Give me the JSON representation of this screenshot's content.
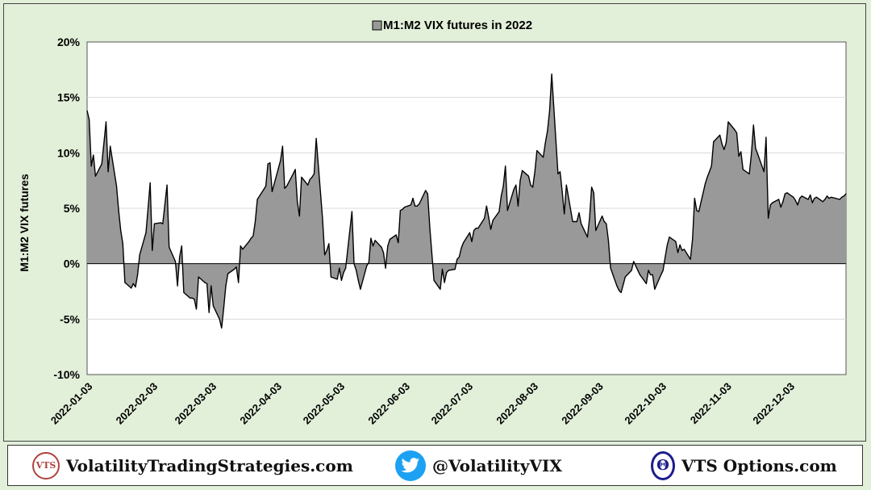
{
  "chart_data": {
    "type": "area",
    "title": "M1:M2 VIX futures in 2022",
    "legend_label": "M1:M2 VIX futures in 2022",
    "legend_position": "top-center",
    "ylabel": "M1:M2 VIX futures",
    "xlabel": "",
    "ylim": [
      -10,
      20
    ],
    "ytick_values": [
      -10,
      -5,
      0,
      5,
      10,
      15,
      20
    ],
    "ytick_labels": [
      "-10%",
      "-5%",
      "0%",
      "5%",
      "10%",
      "15%",
      "20%"
    ],
    "xtick_labels": [
      "2022-01-03",
      "2022-02-03",
      "2022-03-03",
      "2022-04-03",
      "2022-05-03",
      "2022-06-03",
      "2022-07-03",
      "2022-08-03",
      "2022-09-03",
      "2022-10-03",
      "2022-11-03",
      "2022-12-03"
    ],
    "xlim": [
      "2022-01-03",
      "2022-12-30"
    ],
    "grid": "horizontal",
    "fill_color": "#999999",
    "line_color": "#000000",
    "series": [
      {
        "name": "M1:M2 VIX futures in 2022",
        "points": [
          [
            "2022-01-03",
            13.8
          ],
          [
            "2022-01-04",
            13.0
          ],
          [
            "2022-01-05",
            8.8
          ],
          [
            "2022-01-06",
            9.8
          ],
          [
            "2022-01-07",
            7.9
          ],
          [
            "2022-01-10",
            9.0
          ],
          [
            "2022-01-11",
            10.9
          ],
          [
            "2022-01-12",
            12.8
          ],
          [
            "2022-01-13",
            8.3
          ],
          [
            "2022-01-14",
            10.6
          ],
          [
            "2022-01-17",
            7.0
          ],
          [
            "2022-01-18",
            4.8
          ],
          [
            "2022-01-19",
            3.0
          ],
          [
            "2022-01-20",
            1.8
          ],
          [
            "2022-01-21",
            -1.7
          ],
          [
            "2022-01-24",
            -2.2
          ],
          [
            "2022-01-25",
            -1.8
          ],
          [
            "2022-01-26",
            -2.1
          ],
          [
            "2022-01-27",
            -1.0
          ],
          [
            "2022-01-28",
            0.8
          ],
          [
            "2022-01-31",
            2.8
          ],
          [
            "2022-02-01",
            5.0
          ],
          [
            "2022-02-02",
            7.3
          ],
          [
            "2022-02-03",
            1.2
          ],
          [
            "2022-02-04",
            3.6
          ],
          [
            "2022-02-07",
            3.7
          ],
          [
            "2022-02-08",
            3.6
          ],
          [
            "2022-02-09",
            5.3
          ],
          [
            "2022-02-10",
            7.1
          ],
          [
            "2022-02-11",
            1.5
          ],
          [
            "2022-02-14",
            0.2
          ],
          [
            "2022-02-15",
            -2.0
          ],
          [
            "2022-02-16",
            0.6
          ],
          [
            "2022-02-17",
            1.6
          ],
          [
            "2022-02-18",
            -2.6
          ],
          [
            "2022-02-21",
            -3.1
          ],
          [
            "2022-02-22",
            -3.1
          ],
          [
            "2022-02-23",
            -3.2
          ],
          [
            "2022-02-24",
            -4.1
          ],
          [
            "2022-02-25",
            -1.2
          ],
          [
            "2022-02-28",
            -1.7
          ],
          [
            "2022-03-01",
            -1.8
          ],
          [
            "2022-03-02",
            -4.4
          ],
          [
            "2022-03-03",
            -2.0
          ],
          [
            "2022-03-04",
            -3.8
          ],
          [
            "2022-03-07",
            -5.0
          ],
          [
            "2022-03-08",
            -5.8
          ],
          [
            "2022-03-09",
            -4.0
          ],
          [
            "2022-03-10",
            -2.0
          ],
          [
            "2022-03-11",
            -0.9
          ],
          [
            "2022-03-14",
            -0.5
          ],
          [
            "2022-03-15",
            -0.3
          ],
          [
            "2022-03-16",
            -1.7
          ],
          [
            "2022-03-17",
            1.6
          ],
          [
            "2022-03-18",
            1.3
          ],
          [
            "2022-03-21",
            2.0
          ],
          [
            "2022-03-22",
            2.3
          ],
          [
            "2022-03-23",
            2.5
          ],
          [
            "2022-03-24",
            3.8
          ],
          [
            "2022-03-25",
            5.8
          ],
          [
            "2022-03-28",
            6.7
          ],
          [
            "2022-03-29",
            7.0
          ],
          [
            "2022-03-30",
            9.0
          ],
          [
            "2022-03-31",
            9.1
          ],
          [
            "2022-04-01",
            6.5
          ],
          [
            "2022-04-04",
            8.6
          ],
          [
            "2022-04-05",
            9.3
          ],
          [
            "2022-04-06",
            10.6
          ],
          [
            "2022-04-07",
            6.8
          ],
          [
            "2022-04-08",
            7.0
          ],
          [
            "2022-04-11",
            8.1
          ],
          [
            "2022-04-12",
            8.5
          ],
          [
            "2022-04-13",
            5.6
          ],
          [
            "2022-04-14",
            4.3
          ],
          [
            "2022-04-15",
            7.8
          ],
          [
            "2022-04-18",
            7.1
          ],
          [
            "2022-04-19",
            7.6
          ],
          [
            "2022-04-20",
            7.8
          ],
          [
            "2022-04-21",
            8.1
          ],
          [
            "2022-04-22",
            11.3
          ],
          [
            "2022-04-25",
            4.1
          ],
          [
            "2022-04-26",
            0.8
          ],
          [
            "2022-04-27",
            1.2
          ],
          [
            "2022-04-28",
            1.8
          ],
          [
            "2022-04-29",
            -1.2
          ],
          [
            "2022-05-02",
            -1.4
          ],
          [
            "2022-05-03",
            -0.4
          ],
          [
            "2022-05-04",
            -1.5
          ],
          [
            "2022-05-05",
            -0.8
          ],
          [
            "2022-05-06",
            -0.4
          ],
          [
            "2022-05-09",
            4.7
          ],
          [
            "2022-05-10",
            0.0
          ],
          [
            "2022-05-11",
            -0.6
          ],
          [
            "2022-05-12",
            -1.5
          ],
          [
            "2022-05-13",
            -2.3
          ],
          [
            "2022-05-16",
            -0.2
          ],
          [
            "2022-05-17",
            0.1
          ],
          [
            "2022-05-18",
            2.3
          ],
          [
            "2022-05-19",
            1.6
          ],
          [
            "2022-05-20",
            2.1
          ],
          [
            "2022-05-23",
            1.5
          ],
          [
            "2022-05-24",
            1.0
          ],
          [
            "2022-05-25",
            -0.4
          ],
          [
            "2022-05-26",
            1.6
          ],
          [
            "2022-05-27",
            2.2
          ],
          [
            "2022-05-30",
            2.6
          ],
          [
            "2022-05-31",
            1.9
          ],
          [
            "2022-06-01",
            4.8
          ],
          [
            "2022-06-02",
            4.9
          ],
          [
            "2022-06-03",
            5.1
          ],
          [
            "2022-06-06",
            5.3
          ],
          [
            "2022-06-07",
            5.9
          ],
          [
            "2022-06-08",
            5.2
          ],
          [
            "2022-06-09",
            5.2
          ],
          [
            "2022-06-10",
            5.4
          ],
          [
            "2022-06-13",
            6.6
          ],
          [
            "2022-06-14",
            6.3
          ],
          [
            "2022-06-15",
            3.3
          ],
          [
            "2022-06-16",
            0.9
          ],
          [
            "2022-06-17",
            -1.5
          ],
          [
            "2022-06-20",
            -2.3
          ],
          [
            "2022-06-21",
            -0.5
          ],
          [
            "2022-06-22",
            -1.7
          ],
          [
            "2022-06-23",
            -0.8
          ],
          [
            "2022-06-24",
            -0.6
          ],
          [
            "2022-06-27",
            -0.5
          ],
          [
            "2022-06-28",
            0.4
          ],
          [
            "2022-06-29",
            0.6
          ],
          [
            "2022-06-30",
            1.4
          ],
          [
            "2022-07-01",
            1.9
          ],
          [
            "2022-07-04",
            2.8
          ],
          [
            "2022-07-05",
            2.0
          ],
          [
            "2022-07-06",
            3.0
          ],
          [
            "2022-07-07",
            3.2
          ],
          [
            "2022-07-08",
            3.2
          ],
          [
            "2022-07-11",
            4.1
          ],
          [
            "2022-07-12",
            5.2
          ],
          [
            "2022-07-13",
            4.2
          ],
          [
            "2022-07-14",
            3.1
          ],
          [
            "2022-07-15",
            3.9
          ],
          [
            "2022-07-18",
            4.7
          ],
          [
            "2022-07-19",
            6.1
          ],
          [
            "2022-07-20",
            7.0
          ],
          [
            "2022-07-21",
            8.8
          ],
          [
            "2022-07-22",
            4.8
          ],
          [
            "2022-07-25",
            6.7
          ],
          [
            "2022-07-26",
            7.1
          ],
          [
            "2022-07-27",
            5.2
          ],
          [
            "2022-07-28",
            7.5
          ],
          [
            "2022-07-29",
            8.4
          ],
          [
            "2022-08-01",
            7.9
          ],
          [
            "2022-08-02",
            7.1
          ],
          [
            "2022-08-03",
            6.9
          ],
          [
            "2022-08-04",
            8.3
          ],
          [
            "2022-08-05",
            10.2
          ],
          [
            "2022-08-08",
            9.6
          ],
          [
            "2022-08-09",
            10.9
          ],
          [
            "2022-08-10",
            12.0
          ],
          [
            "2022-08-11",
            13.8
          ],
          [
            "2022-08-12",
            17.1
          ],
          [
            "2022-08-15",
            8.1
          ],
          [
            "2022-08-16",
            8.3
          ],
          [
            "2022-08-17",
            6.5
          ],
          [
            "2022-08-18",
            4.5
          ],
          [
            "2022-08-19",
            7.1
          ],
          [
            "2022-08-22",
            3.8
          ],
          [
            "2022-08-23",
            3.8
          ],
          [
            "2022-08-24",
            3.8
          ],
          [
            "2022-08-25",
            4.6
          ],
          [
            "2022-08-26",
            3.6
          ],
          [
            "2022-08-29",
            2.4
          ],
          [
            "2022-08-30",
            4.1
          ],
          [
            "2022-08-31",
            6.9
          ],
          [
            "2022-09-01",
            6.4
          ],
          [
            "2022-09-02",
            3.0
          ],
          [
            "2022-09-05",
            4.3
          ],
          [
            "2022-09-06",
            3.8
          ],
          [
            "2022-09-07",
            3.6
          ],
          [
            "2022-09-08",
            2.1
          ],
          [
            "2022-09-09",
            -0.4
          ],
          [
            "2022-09-12",
            -2.0
          ],
          [
            "2022-09-13",
            -2.4
          ],
          [
            "2022-09-14",
            -2.6
          ],
          [
            "2022-09-15",
            -1.9
          ],
          [
            "2022-09-16",
            -1.2
          ],
          [
            "2022-09-19",
            -0.6
          ],
          [
            "2022-09-20",
            0.2
          ],
          [
            "2022-09-21",
            -0.2
          ],
          [
            "2022-09-22",
            -0.6
          ],
          [
            "2022-09-23",
            -1.0
          ],
          [
            "2022-09-26",
            -1.8
          ],
          [
            "2022-09-27",
            -0.6
          ],
          [
            "2022-09-28",
            -1.0
          ],
          [
            "2022-09-29",
            -1.0
          ],
          [
            "2022-09-30",
            -2.3
          ],
          [
            "2022-10-03",
            -1.0
          ],
          [
            "2022-10-04",
            -0.6
          ],
          [
            "2022-10-05",
            0.6
          ],
          [
            "2022-10-06",
            1.7
          ],
          [
            "2022-10-07",
            2.4
          ],
          [
            "2022-10-10",
            2.0
          ],
          [
            "2022-10-11",
            1.0
          ],
          [
            "2022-10-12",
            1.7
          ],
          [
            "2022-10-13",
            1.2
          ],
          [
            "2022-10-14",
            1.3
          ],
          [
            "2022-10-17",
            0.4
          ],
          [
            "2022-10-18",
            2.2
          ],
          [
            "2022-10-19",
            5.9
          ],
          [
            "2022-10-20",
            4.8
          ],
          [
            "2022-10-21",
            4.7
          ],
          [
            "2022-10-24",
            7.2
          ],
          [
            "2022-10-25",
            7.8
          ],
          [
            "2022-10-26",
            8.3
          ],
          [
            "2022-10-27",
            8.8
          ],
          [
            "2022-10-28",
            11.0
          ],
          [
            "2022-10-31",
            11.6
          ],
          [
            "2022-11-01",
            10.8
          ],
          [
            "2022-11-02",
            10.3
          ],
          [
            "2022-11-03",
            10.9
          ],
          [
            "2022-11-04",
            12.8
          ],
          [
            "2022-11-07",
            12.1
          ],
          [
            "2022-11-08",
            11.8
          ],
          [
            "2022-11-09",
            9.7
          ],
          [
            "2022-11-10",
            10.1
          ],
          [
            "2022-11-11",
            8.5
          ],
          [
            "2022-11-14",
            8.1
          ],
          [
            "2022-11-15",
            9.9
          ],
          [
            "2022-11-16",
            12.5
          ],
          [
            "2022-11-17",
            10.4
          ],
          [
            "2022-11-18",
            9.9
          ],
          [
            "2022-11-21",
            8.3
          ],
          [
            "2022-11-22",
            11.4
          ],
          [
            "2022-11-23",
            4.1
          ],
          [
            "2022-11-24",
            5.3
          ],
          [
            "2022-11-25",
            5.5
          ],
          [
            "2022-11-28",
            5.8
          ],
          [
            "2022-11-29",
            5.1
          ],
          [
            "2022-11-30",
            5.6
          ],
          [
            "2022-12-01",
            6.3
          ],
          [
            "2022-12-02",
            6.4
          ],
          [
            "2022-12-05",
            6.0
          ],
          [
            "2022-12-06",
            5.7
          ],
          [
            "2022-12-07",
            5.3
          ],
          [
            "2022-12-08",
            5.9
          ],
          [
            "2022-12-09",
            6.1
          ],
          [
            "2022-12-12",
            5.8
          ],
          [
            "2022-12-13",
            6.2
          ],
          [
            "2022-12-14",
            5.5
          ],
          [
            "2022-12-15",
            5.9
          ],
          [
            "2022-12-16",
            6.0
          ],
          [
            "2022-12-19",
            5.6
          ],
          [
            "2022-12-20",
            5.8
          ],
          [
            "2022-12-21",
            6.1
          ],
          [
            "2022-12-22",
            5.9
          ],
          [
            "2022-12-23",
            6.0
          ],
          [
            "2022-12-27",
            5.8
          ],
          [
            "2022-12-28",
            6.0
          ],
          [
            "2022-12-29",
            6.1
          ],
          [
            "2022-12-30",
            6.3
          ]
        ]
      }
    ]
  },
  "footer": {
    "vts_seal_text": "VTS",
    "site_label": "VolatilityTradingStrategies.com",
    "twitter_label": "@VolatilityVIX",
    "options_label": "VTS Options.com",
    "options_icon_glyph": "Θ",
    "icons": [
      "vts-seal-icon",
      "twitter-bird-icon",
      "theta-icon"
    ],
    "colors": {
      "twitter_blue": "#1da1f2",
      "vts_red": "#b0413e",
      "theta_navy": "#1c1c8c"
    }
  }
}
